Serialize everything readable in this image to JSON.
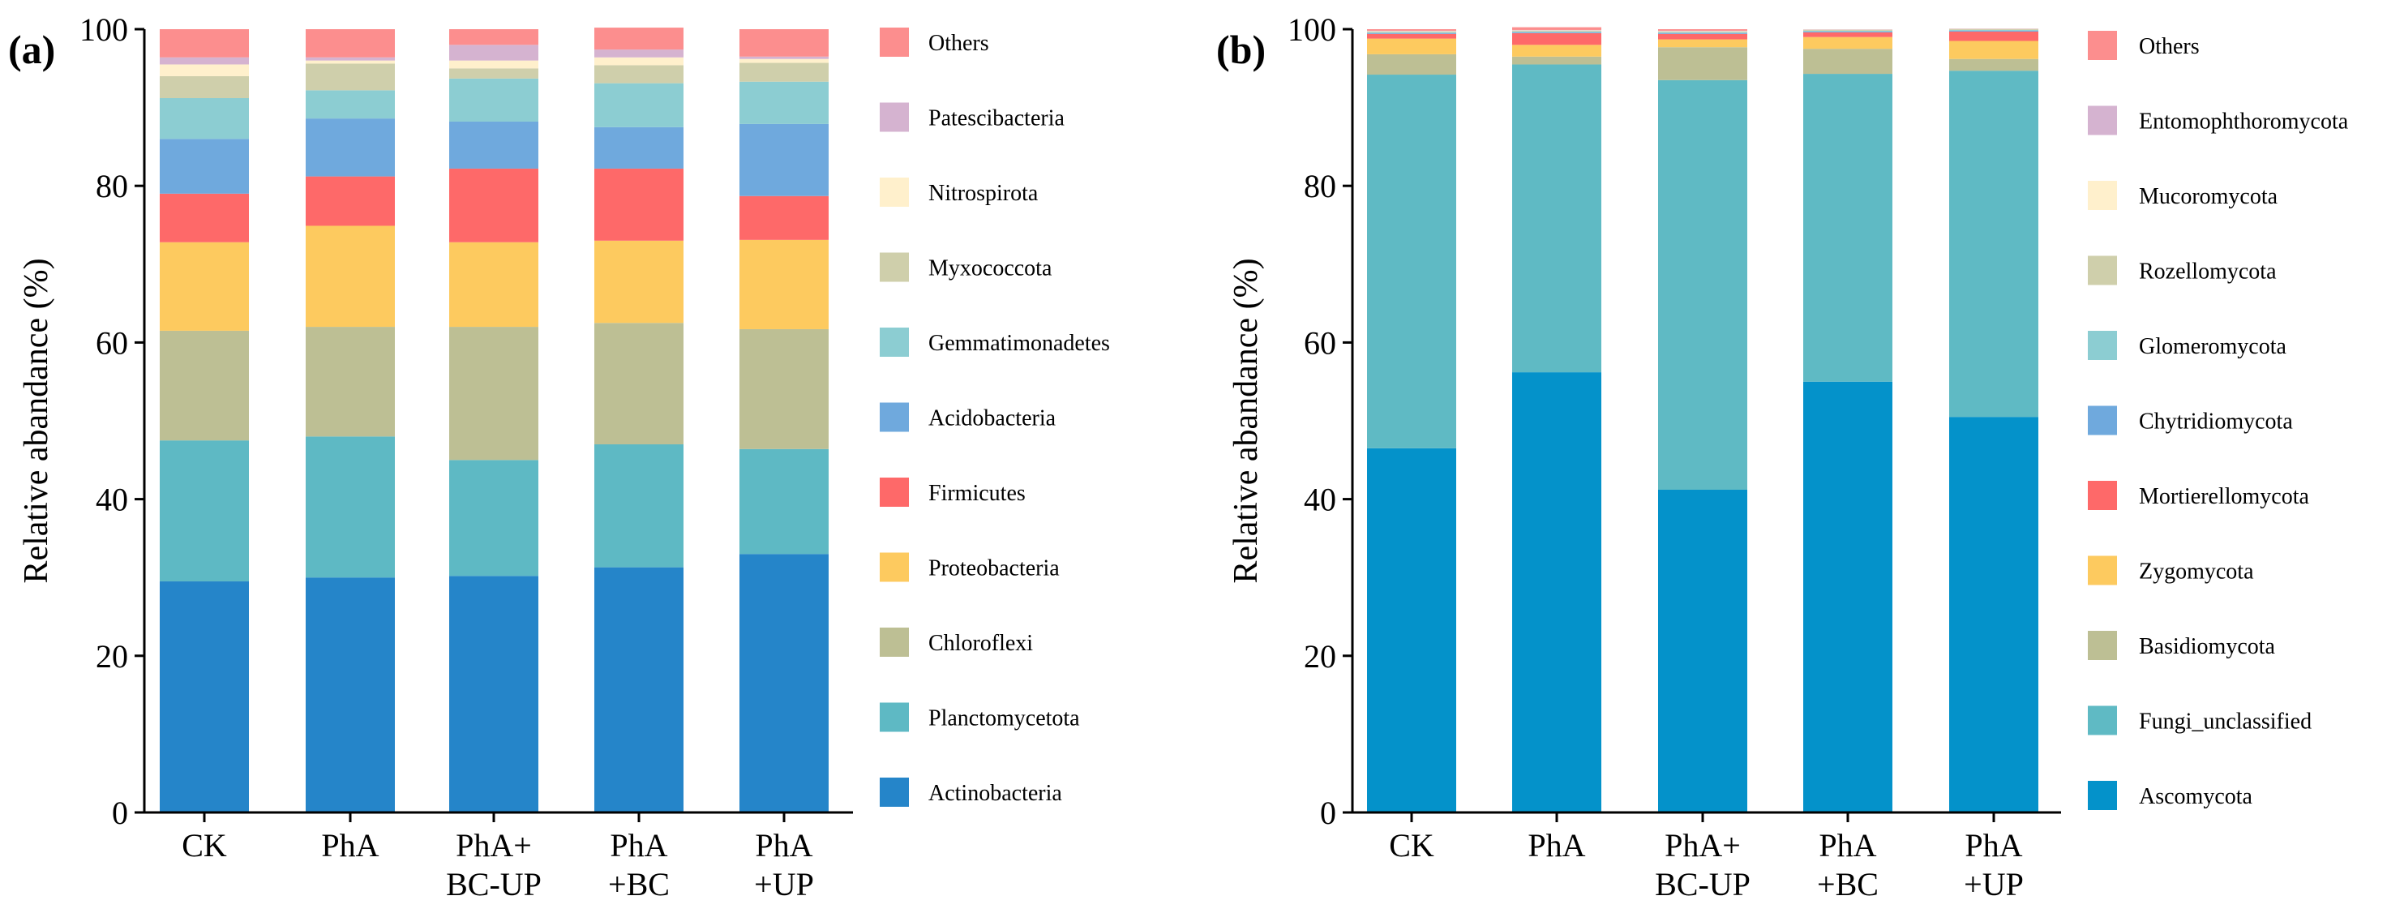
{
  "chart_data": [
    {
      "type": "bar",
      "stacked": true,
      "panel_label": "(a)",
      "ylabel": "Relative abandance (%)",
      "ylim": [
        0,
        100
      ],
      "yticks": [
        0,
        20,
        40,
        60,
        80,
        100
      ],
      "categories": [
        [
          "CK"
        ],
        [
          "PhA"
        ],
        [
          "PhA+",
          "BC-UP"
        ],
        [
          "PhA",
          "+BC"
        ],
        [
          "PhA",
          "+UP"
        ]
      ],
      "series": [
        {
          "name": "Actinobacteria",
          "color": "#2585c9",
          "values": [
            29.5,
            30.0,
            30.2,
            31.3,
            33.0
          ]
        },
        {
          "name": "Planctomycetota",
          "color": "#5eb9c4",
          "values": [
            18.0,
            18.0,
            14.8,
            15.7,
            13.4
          ]
        },
        {
          "name": "Chloroflexi",
          "color": "#bdbf94",
          "values": [
            14.0,
            14.0,
            17.0,
            15.5,
            15.3
          ]
        },
        {
          "name": "Proteobacteria",
          "color": "#fdca5f",
          "values": [
            11.3,
            12.9,
            10.8,
            10.5,
            11.4
          ]
        },
        {
          "name": "Firmicutes",
          "color": "#fe6969",
          "values": [
            6.2,
            6.3,
            9.4,
            9.2,
            5.6
          ]
        },
        {
          "name": "Acidobacteria",
          "color": "#6fa9dd",
          "values": [
            7.0,
            7.4,
            6.0,
            5.3,
            9.2
          ]
        },
        {
          "name": "Gemmatimonadetes",
          "color": "#8ccdd2",
          "values": [
            5.2,
            3.6,
            5.5,
            5.6,
            5.4
          ]
        },
        {
          "name": "Myxococcota",
          "color": "#cfcfab",
          "values": [
            2.8,
            3.4,
            1.3,
            2.3,
            2.4
          ]
        },
        {
          "name": "Nitrospirota",
          "color": "#fff0cc",
          "values": [
            1.5,
            0.4,
            1.0,
            1.0,
            0.5
          ]
        },
        {
          "name": "Patescibacteria",
          "color": "#d5b3d0",
          "values": [
            0.9,
            0.4,
            2.0,
            1.0,
            0.3
          ]
        },
        {
          "name": "Others",
          "color": "#fc8e8e",
          "values": [
            3.6,
            3.6,
            2.0,
            2.8,
            3.5
          ]
        }
      ]
    },
    {
      "type": "bar",
      "stacked": true,
      "panel_label": "(b)",
      "ylabel": "Relative abandance (%)",
      "ylim": [
        0,
        100
      ],
      "yticks": [
        0,
        20,
        40,
        60,
        80,
        100
      ],
      "categories": [
        [
          "CK"
        ],
        [
          "PhA"
        ],
        [
          "PhA+",
          "BC-UP"
        ],
        [
          "PhA",
          "+BC"
        ],
        [
          "PhA",
          "+UP"
        ]
      ],
      "series": [
        {
          "name": "Ascomycota",
          "color": "#0492ca",
          "values": [
            46.5,
            56.2,
            41.2,
            55.0,
            50.5
          ]
        },
        {
          "name": "Fungi_unclassified",
          "color": "#5fbac4",
          "values": [
            47.7,
            39.3,
            52.3,
            39.3,
            44.2
          ]
        },
        {
          "name": "Basidiomycota",
          "color": "#bdbf94",
          "values": [
            2.6,
            1.0,
            4.2,
            3.2,
            1.5
          ]
        },
        {
          "name": "Zygomycota",
          "color": "#fdca5f",
          "values": [
            2.0,
            1.5,
            1.0,
            1.5,
            2.3
          ]
        },
        {
          "name": "Mortierellomycota",
          "color": "#fe6969",
          "values": [
            0.6,
            1.5,
            0.7,
            0.6,
            1.2
          ]
        },
        {
          "name": "Chytridiomycota",
          "color": "#6fa9dd",
          "values": [
            0.1,
            0.1,
            0.1,
            0.1,
            0.1
          ]
        },
        {
          "name": "Glomeromycota",
          "color": "#8ccdd2",
          "values": [
            0.1,
            0.1,
            0.1,
            0.1,
            0.1
          ]
        },
        {
          "name": "Rozellomycota",
          "color": "#cfcfab",
          "values": [
            0.1,
            0.1,
            0.1,
            0.1,
            0.1
          ]
        },
        {
          "name": "Mucoromycota",
          "color": "#fff0cc",
          "values": [
            0.05,
            0.05,
            0.05,
            0.05,
            0.05
          ]
        },
        {
          "name": "Entomophthoromycota",
          "color": "#d5b3d0",
          "values": [
            0.05,
            0.05,
            0.05,
            0.05,
            0.05
          ]
        },
        {
          "name": "Others",
          "color": "#fc8e8e",
          "values": [
            0.2,
            0.35,
            0.2,
            0.0,
            0.0
          ]
        }
      ]
    }
  ]
}
